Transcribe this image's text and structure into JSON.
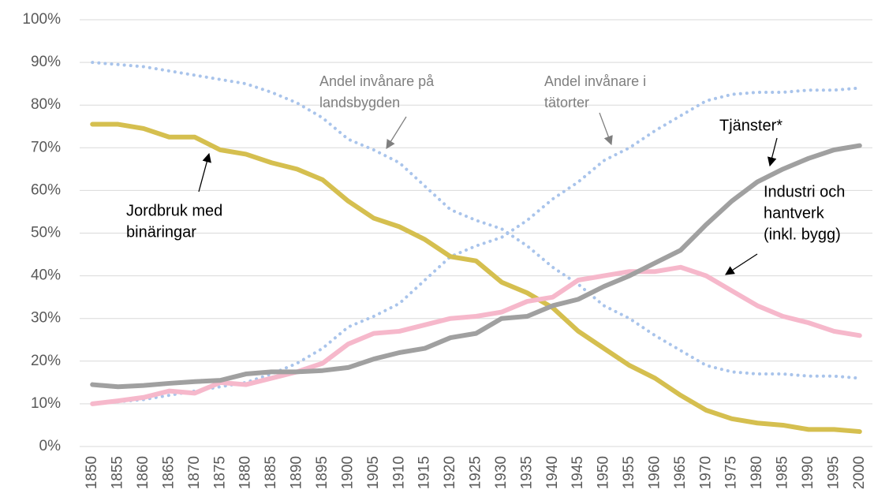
{
  "chart_data": {
    "type": "line",
    "categories": [
      "1850",
      "1855",
      "1860",
      "1865",
      "1870",
      "1875",
      "1880",
      "1885",
      "1890",
      "1895",
      "1900",
      "1905",
      "1910",
      "1915",
      "1920",
      "1925",
      "1930",
      "1935",
      "1940",
      "1945",
      "1950",
      "1955",
      "1960",
      "1965",
      "1970",
      "1975",
      "1980",
      "1985",
      "1990",
      "1995",
      "2000"
    ],
    "series": [
      {
        "color": "#a9c4eb",
        "dotted": true,
        "values": [
          90,
          89.5,
          89,
          88,
          87,
          86,
          85,
          83,
          80.5,
          77,
          72,
          69.5,
          66.5,
          61,
          55.5,
          53,
          51,
          47,
          42,
          38,
          33,
          30,
          26,
          22.5,
          19,
          17.5,
          17,
          17,
          16.5,
          16.5,
          16
        ]
      },
      {
        "color": "#a9c4eb",
        "dotted": true,
        "values": [
          10,
          10.5,
          11,
          12,
          13,
          14,
          15,
          17,
          19.5,
          23,
          28,
          30.5,
          33.5,
          39,
          44.5,
          47,
          49,
          53,
          58,
          62,
          67,
          70,
          74,
          77.5,
          81,
          82.5,
          83,
          83,
          83.5,
          83.5,
          84
        ]
      },
      {
        "color": "#d5bf4f",
        "dotted": false,
        "values": [
          75.5,
          75.5,
          74.5,
          72.5,
          72.5,
          69.5,
          68.5,
          66.5,
          65,
          62.5,
          57.5,
          53.5,
          51.5,
          48.5,
          44.5,
          43.5,
          38.5,
          36,
          32.5,
          27,
          23,
          19,
          16,
          12,
          8.5,
          6.5,
          5.5,
          5,
          4,
          4,
          3.5
        ]
      },
      {
        "color": "#f6b8cb",
        "dotted": false,
        "values": [
          10,
          10.7,
          11.5,
          13,
          12.5,
          15,
          14.5,
          16,
          17.5,
          19.5,
          24,
          26.5,
          27,
          28.5,
          30,
          30.5,
          31.5,
          34,
          35,
          39,
          40,
          41,
          41,
          42,
          40,
          36.5,
          33,
          30.5,
          29,
          27,
          26
        ]
      },
      {
        "color": "#a0a0a0",
        "dotted": false,
        "values": [
          14.5,
          14,
          14.3,
          14.8,
          15.2,
          15.5,
          17,
          17.5,
          17.5,
          17.8,
          18.5,
          20.5,
          22,
          23,
          25.5,
          26.5,
          30,
          30.5,
          33,
          34.5,
          37.5,
          40,
          43,
          46,
          52,
          57.5,
          62,
          65,
          67.5,
          69.5,
          70.5
        ]
      }
    ],
    "ylim": [
      0,
      100
    ],
    "yticks": [
      {
        "value": 0,
        "label": "0%"
      },
      {
        "value": 10,
        "label": "10%"
      },
      {
        "value": 20,
        "label": "20%"
      },
      {
        "value": 30,
        "label": "30%"
      },
      {
        "value": 40,
        "label": "40%"
      },
      {
        "value": 50,
        "label": "50%"
      },
      {
        "value": 60,
        "label": "60%"
      },
      {
        "value": 70,
        "label": "70%"
      },
      {
        "value": 80,
        "label": "80%"
      },
      {
        "value": 90,
        "label": "90%"
      },
      {
        "value": 100,
        "label": "100%"
      }
    ],
    "grid": true,
    "annotations": [
      {
        "lines": [
          "Andel invånare på",
          "landsbygden"
        ]
      },
      {
        "lines": [
          "Andel invånare i",
          "tätorter"
        ]
      },
      {
        "lines": [
          "Tjänster*"
        ]
      },
      {
        "lines": [
          "Industri och",
          "hantverk",
          "(inkl. bygg)"
        ]
      },
      {
        "lines": [
          "Jordbruk med",
          "binäringar"
        ]
      }
    ]
  }
}
